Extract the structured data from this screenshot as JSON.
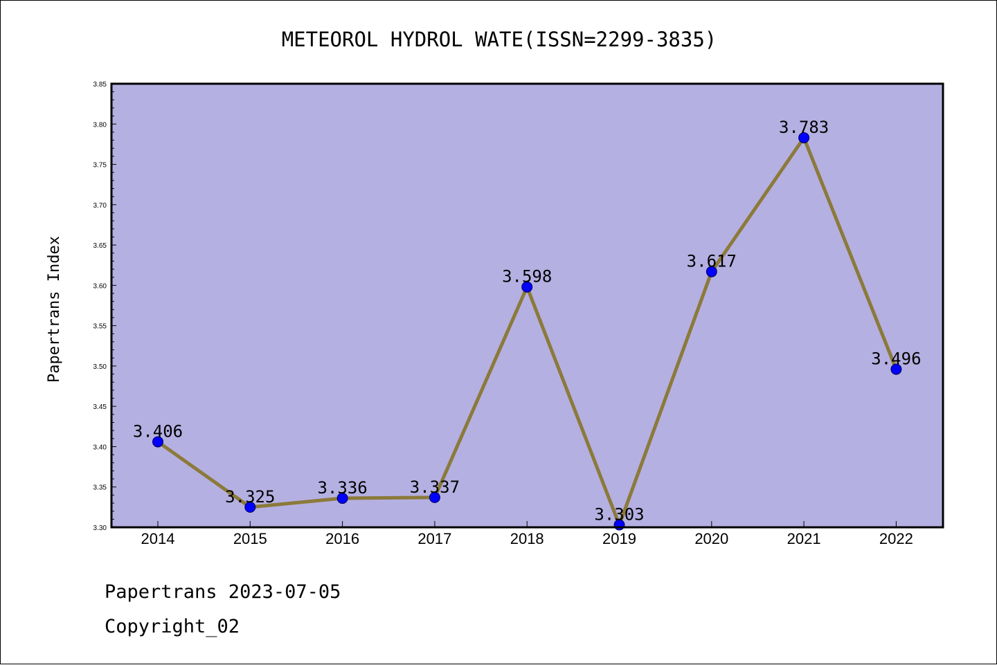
{
  "chart_data": {
    "type": "line",
    "title": "METEOROL HYDROL WATE(ISSN=2299-3835)",
    "ylabel": "Papertrans Index",
    "xlabel": "",
    "categories": [
      "2014",
      "2015",
      "2016",
      "2017",
      "2018",
      "2019",
      "2020",
      "2021",
      "2022"
    ],
    "series": [
      {
        "values": [
          3.406,
          3.325,
          3.336,
          3.337,
          3.598,
          3.303,
          3.617,
          3.783,
          3.496
        ]
      }
    ],
    "data_labels": [
      "3.406",
      "3.325",
      "3.336",
      "3.337",
      "3.598",
      "3.303",
      "3.617",
      "3.783",
      "3.496"
    ],
    "ylim": [
      3.3,
      3.85
    ],
    "yticks": [
      "3.30",
      "3.35",
      "3.40",
      "3.45",
      "3.50",
      "3.55",
      "3.60",
      "3.65",
      "3.70",
      "3.75",
      "3.80",
      "3.85"
    ],
    "grid": false,
    "legend": "none",
    "colors": {
      "plot_background": "#b5b0e2",
      "line": "#8b7a3a",
      "marker": "#0000ff",
      "axis": "#000000"
    }
  },
  "footer": {
    "line1": "Papertrans 2023-07-05",
    "line2": "Copyright_02"
  }
}
